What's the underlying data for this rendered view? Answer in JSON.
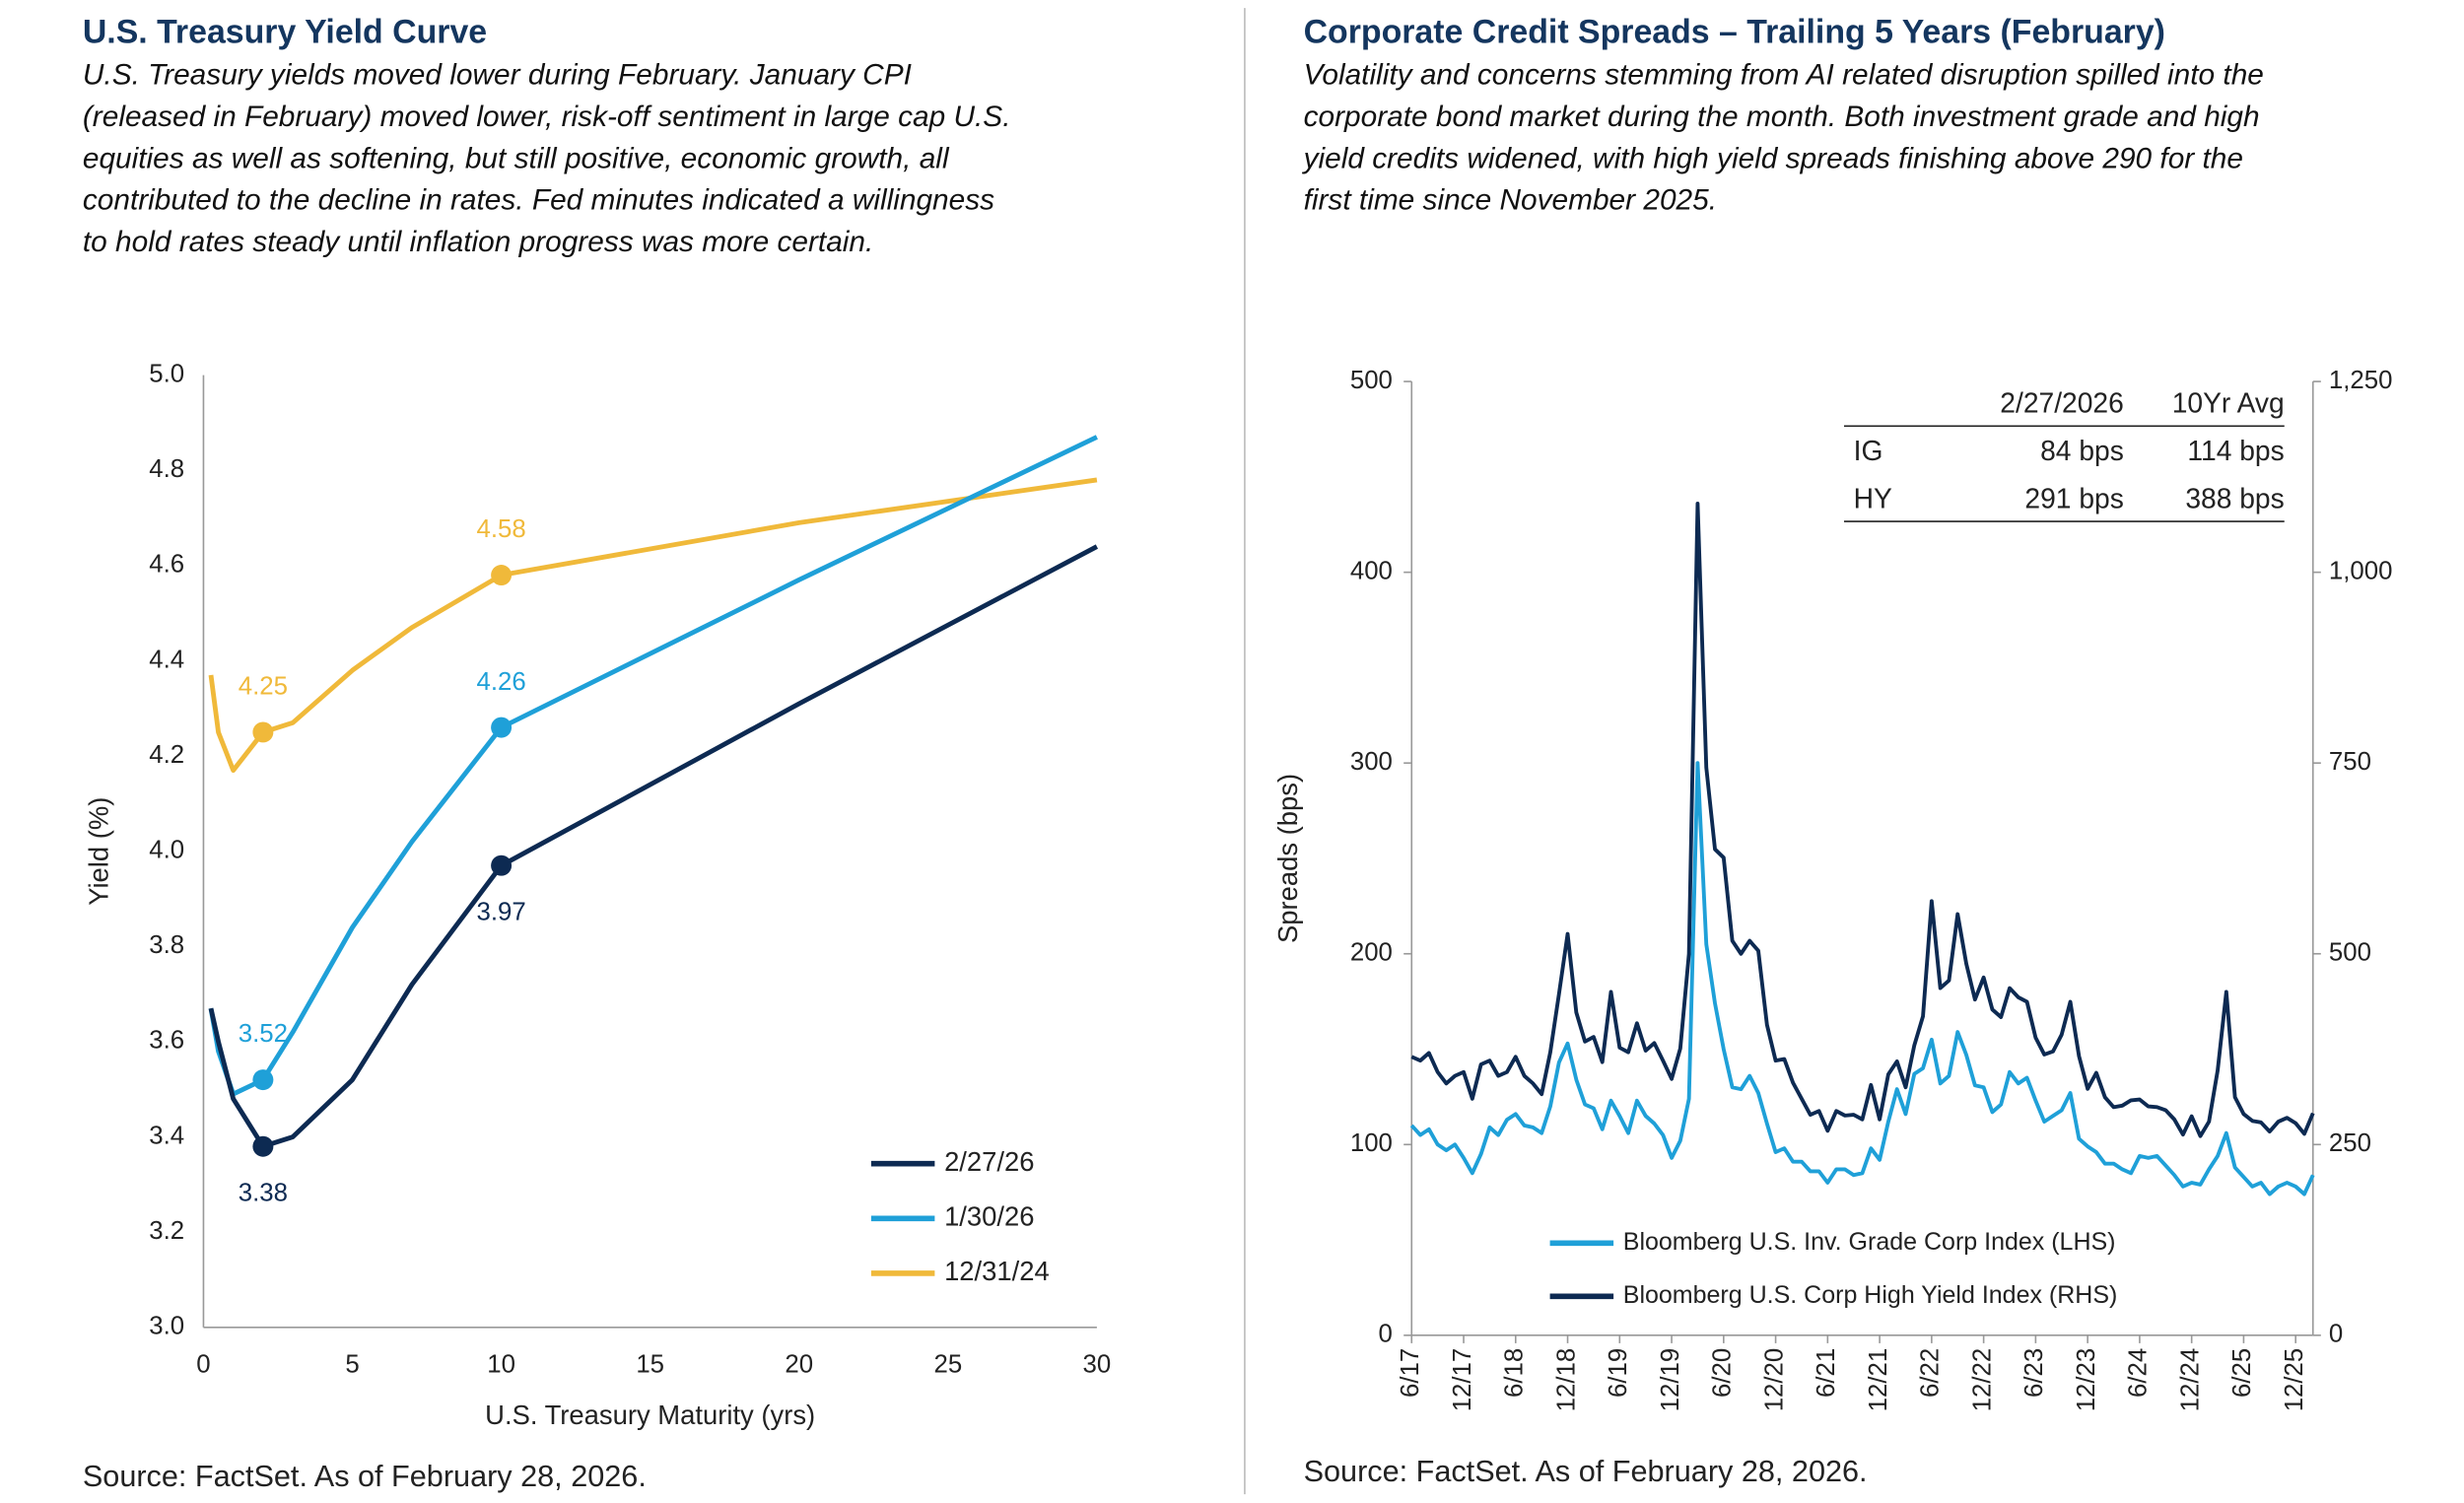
{
  "chart_data": [
    {
      "type": "line",
      "title": "U.S. Treasury Yield Curve",
      "subtitle": [
        "U.S. Treasury yields moved lower during February. January CPI",
        "(released in February) moved lower, risk-off sentiment in large cap U.S.",
        "equities as well as softening, but still positive, economic growth, all",
        "contributed to the decline in rates. Fed minutes indicated a willingness",
        "to hold rates steady until inflation progress was more certain."
      ],
      "x_label": "U.S. Treasury  Maturity (yrs)",
      "y_label": "Yield (%)",
      "x": [
        0.25,
        0.5,
        1,
        2,
        3,
        5,
        7,
        10,
        20,
        30
      ],
      "series": [
        {
          "name": "2/27/26",
          "color": "#0d2a52",
          "values": [
            3.67,
            3.6,
            3.48,
            3.38,
            3.4,
            3.52,
            3.72,
            3.97,
            4.31,
            4.64
          ]
        },
        {
          "name": "1/30/26",
          "color": "#1fa0d8",
          "values": [
            3.67,
            3.58,
            3.49,
            3.52,
            3.62,
            3.84,
            4.02,
            4.26,
            4.57,
            4.87
          ]
        },
        {
          "name": "12/31/24",
          "color": "#f0b93a",
          "values": [
            4.37,
            4.25,
            4.17,
            4.25,
            4.27,
            4.38,
            4.47,
            4.58,
            4.69,
            4.78
          ]
        }
      ],
      "marked_x": [
        2,
        10
      ],
      "xlim": [
        0,
        30
      ],
      "xticks": [
        0,
        5,
        10,
        15,
        20,
        25,
        30
      ],
      "ylim": [
        3.0,
        5.0
      ],
      "yticks": [
        {
          "value": 3.0,
          "label": "3.0"
        },
        3.2,
        3.4,
        3.6,
        3.8,
        {
          "value": 4.0,
          "label": "4.0"
        },
        4.2,
        4.4,
        4.6,
        4.8,
        {
          "value": 5.0,
          "label": "5.0"
        }
      ],
      "legend": "lower right",
      "grid": false,
      "source": "Source: FactSet. As of February 28, 2026."
    },
    {
      "type": "line",
      "title": "Corporate Credit Spreads – Trailing 5 Years (February)",
      "subtitle": [
        "Volatility and concerns stemming from AI related disruption spilled into the",
        "corporate bond market during the month. Both investment grade and high",
        "yield credits widened, with high yield spreads finishing above 290 for the",
        "first time since November 2025."
      ],
      "y_label": "Spreads (bps)",
      "categories": [
        "6/17",
        null,
        null,
        null,
        null,
        null,
        "12/17",
        null,
        null,
        null,
        null,
        null,
        "6/18",
        null,
        null,
        null,
        null,
        null,
        "12/18",
        null,
        null,
        null,
        null,
        null,
        "6/19",
        null,
        null,
        null,
        null,
        null,
        "12/19",
        null,
        null,
        null,
        null,
        null,
        "6/20",
        null,
        null,
        null,
        null,
        null,
        "12/20",
        null,
        null,
        null,
        null,
        null,
        "6/21",
        null,
        null,
        null,
        null,
        null,
        "12/21",
        null,
        null,
        null,
        null,
        null,
        "6/22",
        null,
        null,
        null,
        null,
        null,
        "12/22",
        null,
        null,
        null,
        null,
        null,
        "6/23",
        null,
        null,
        null,
        null,
        null,
        "12/23",
        null,
        null,
        null,
        null,
        null,
        "6/24",
        null,
        null,
        null,
        null,
        null,
        "12/24",
        null,
        null,
        null,
        null,
        null,
        "6/25",
        null,
        null,
        null,
        null,
        null,
        "12/25",
        null,
        null
      ],
      "series": [
        {
          "name": "Bloomberg U.S. Inv. Grade Corp Index (LHS)",
          "color": "#1fa0d8",
          "values": [
            110,
            105,
            108,
            100,
            97,
            100,
            93,
            85,
            95,
            109,
            105,
            113,
            116,
            110,
            109,
            106,
            120,
            143,
            153,
            134,
            121,
            119,
            108,
            123,
            115,
            106,
            123,
            115,
            111,
            105,
            93,
            102,
            124,
            300,
            205,
            174,
            150,
            130,
            129,
            136,
            127,
            111,
            96,
            98,
            91,
            91,
            86,
            86,
            80,
            87,
            87,
            84,
            85,
            98,
            92,
            112,
            129,
            116,
            137,
            140,
            155,
            132,
            136,
            159,
            147,
            131,
            130,
            117,
            121,
            138,
            132,
            135,
            123,
            112,
            115,
            118,
            127,
            103,
            99,
            96,
            90,
            90,
            87,
            85,
            94,
            93,
            94,
            89,
            84,
            78,
            80,
            79,
            87,
            94,
            106,
            88,
            83,
            78,
            80,
            74,
            78,
            80,
            78,
            74,
            84
          ]
        },
        {
          "name": "Bloomberg U.S. Corp High Yield Index (RHS)",
          "color": "#0d2a52",
          "axis": "y2",
          "values": [
            365,
            360,
            370,
            345,
            330,
            340,
            345,
            310,
            355,
            360,
            340,
            345,
            365,
            340,
            330,
            316,
            371,
            447,
            526,
            423,
            385,
            391,
            358,
            450,
            377,
            371,
            409,
            373,
            383,
            360,
            336,
            376,
            500,
            1090,
            744,
            637,
            626,
            517,
            500,
            517,
            504,
            407,
            360,
            362,
            331,
            310,
            289,
            294,
            268,
            294,
            288,
            289,
            283,
            328,
            283,
            342,
            359,
            325,
            380,
            418,
            569,
            455,
            465,
            552,
            487,
            440,
            469,
            427,
            417,
            455,
            443,
            437,
            390,
            368,
            372,
            394,
            437,
            366,
            323,
            344,
            312,
            299,
            301,
            308,
            309,
            300,
            299,
            295,
            283,
            263,
            287,
            261,
            280,
            347,
            450,
            312,
            290,
            281,
            279,
            267,
            280,
            285,
            278,
            264,
            291
          ]
        }
      ],
      "ylim": [
        0,
        500
      ],
      "yticks": [
        0,
        100,
        200,
        300,
        400,
        500
      ],
      "y2lim": [
        0,
        1250
      ],
      "y2ticks": [
        0,
        250,
        500,
        750,
        {
          "value": 1000,
          "label": "1,000"
        },
        {
          "value": 1250,
          "label": "1,250"
        }
      ],
      "legend": "lower left",
      "grid": false,
      "table": {
        "header": [
          "2/27/2026",
          "10Yr Avg"
        ],
        "rows": [
          [
            "IG",
            "84 bps",
            "114 bps"
          ],
          [
            "HY",
            "291 bps",
            "388 bps"
          ]
        ]
      },
      "source": "Source: FactSet. As of February 28, 2026."
    }
  ]
}
